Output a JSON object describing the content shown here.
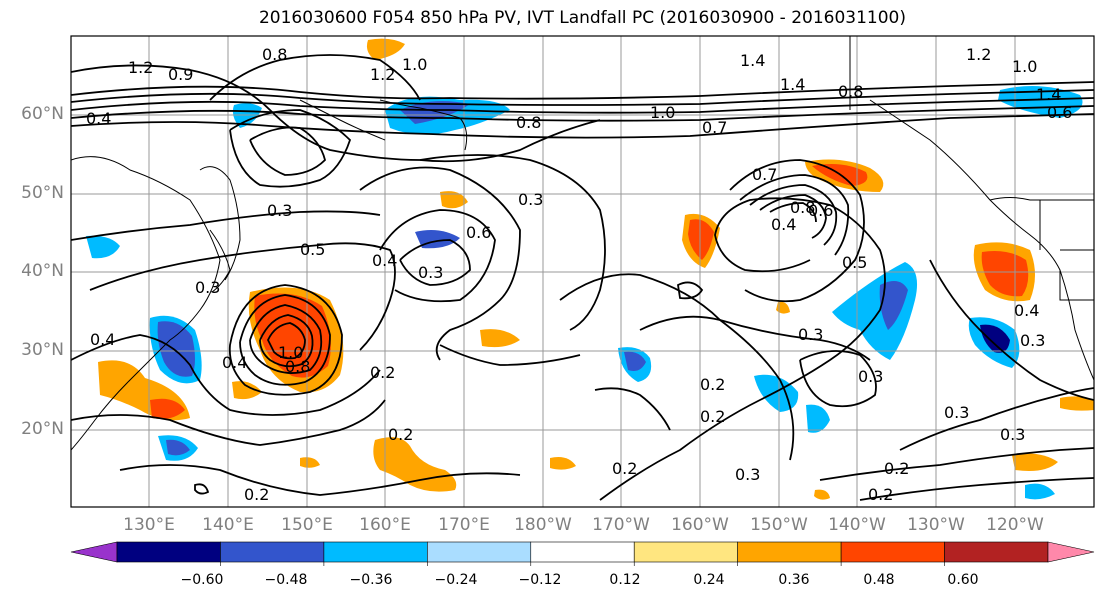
{
  "title": "2016030600 F054 850 hPa PV, IVT Landfall PC (2016030900 - 2016031100)",
  "lat_labels": [
    "60°N",
    "50°N",
    "40°N",
    "30°N",
    "20°N"
  ],
  "lon_labels": [
    "130°E",
    "140°E",
    "150°E",
    "160°E",
    "170°E",
    "180°W",
    "170°W",
    "160°W",
    "150°W",
    "140°W",
    "130°W",
    "120°W"
  ],
  "contour_labels": [
    "1.2",
    "0.9",
    "0.8",
    "0.4",
    "1.0",
    "1.2",
    "0.8",
    "1.4",
    "1.4",
    "0.8",
    "1.0",
    "0.7",
    "1.2",
    "1.0",
    "0.6",
    "1.4",
    "0.3",
    "0.5",
    "0.4",
    "0.3",
    "0.6",
    "0.3",
    "0.7",
    "0.8",
    "0.6",
    "0.4",
    "0.5",
    "0.3",
    "0.4",
    "0.4",
    "1.0",
    "0.8",
    "0.2",
    "0.2",
    "0.2",
    "0.3",
    "0.2",
    "0.2",
    "0.3",
    "0.3",
    "0.4",
    "0.3",
    "0.2",
    "0.2",
    "0.3",
    "0.3",
    "0.2"
  ],
  "colorbar": {
    "ticks": [
      "−0.60",
      "−0.48",
      "−0.36",
      "−0.24",
      "−0.12",
      "0.12",
      "0.24",
      "0.36",
      "0.48",
      "0.60"
    ],
    "colors": [
      "#9933cc",
      "#000080",
      "#3355cc",
      "#00bbff",
      "#aaddff",
      "#ffffff",
      "#ffe680",
      "#ffa500",
      "#ff4500",
      "#b22222",
      "#ff88aa"
    ]
  },
  "colors": {
    "land": "#ffffff",
    "grid": "#999999",
    "contour": "#000000",
    "axis_labels": "#808080"
  }
}
